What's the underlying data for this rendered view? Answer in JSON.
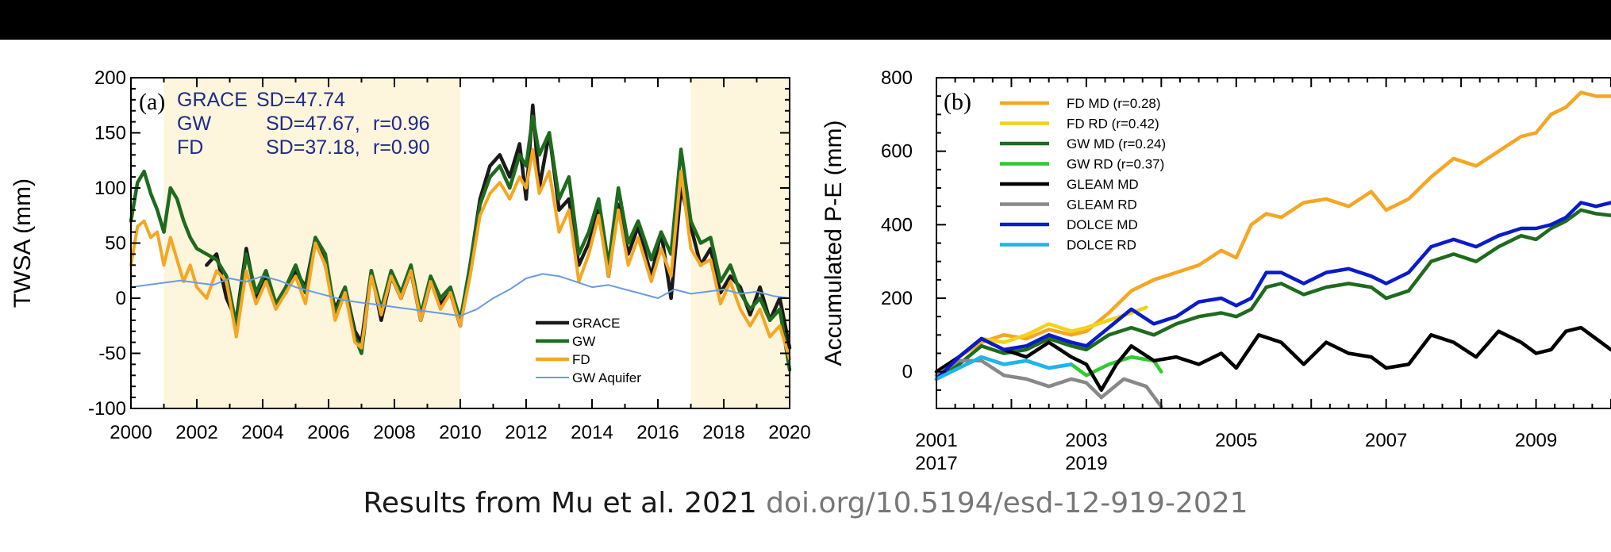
{
  "caption": {
    "text": "Results from Mu et al. 2021",
    "doi": "doi.org/10.5194/esd-12-919-2021"
  },
  "chart_data": [
    {
      "type": "line",
      "panel_label": "(a)",
      "ylabel": "TWSA (mm)",
      "xlim": [
        2000,
        2020
      ],
      "ylim": [
        -100,
        200
      ],
      "xticks": [
        2000,
        2002,
        2004,
        2006,
        2008,
        2010,
        2012,
        2014,
        2016,
        2018,
        2020
      ],
      "yticks": [
        -100,
        -50,
        0,
        50,
        100,
        150,
        200
      ],
      "background": "#fdf5dc",
      "shaded_periods": [
        [
          2001,
          2010
        ],
        [
          2017,
          2020
        ]
      ],
      "stats": [
        {
          "name": "GRACE",
          "sd": "SD=47.74",
          "r": ""
        },
        {
          "name": "GW",
          "sd": "SD=47.67,",
          "r": "r=0.96"
        },
        {
          "name": "FD",
          "sd": "SD=37.18,",
          "r": "r=0.90"
        }
      ],
      "stats_color": "#1f2a8c",
      "legend_position": "bottom-right",
      "series": [
        {
          "name": "GRACE",
          "color": "#1a1a1a",
          "x": [
            2002.3,
            2002.6,
            2002.9,
            2003.2,
            2003.5,
            2003.8,
            2004.1,
            2004.4,
            2004.7,
            2005.0,
            2005.3,
            2005.6,
            2005.9,
            2006.2,
            2006.5,
            2006.8,
            2007.0,
            2007.3,
            2007.6,
            2007.9,
            2008.2,
            2008.5,
            2008.8,
            2009.1,
            2009.4,
            2009.7,
            2010.0,
            2010.3,
            2010.6,
            2010.9,
            2011.2,
            2011.5,
            2011.8,
            2012.0,
            2012.2,
            2012.4,
            2012.7,
            2013.0,
            2013.3,
            2013.6,
            2013.9,
            2014.2,
            2014.5,
            2014.8,
            2015.1,
            2015.4,
            2015.8,
            2016.1,
            2016.4,
            2016.7,
            2017.0,
            2017.3,
            2017.6,
            2017.9,
            2018.2,
            2018.5,
            2018.8,
            2019.1,
            2019.4,
            2019.7,
            2020.0
          ],
          "y": [
            30,
            40,
            0,
            -20,
            45,
            0,
            20,
            -5,
            5,
            25,
            10,
            55,
            30,
            -10,
            10,
            -30,
            -40,
            25,
            -20,
            20,
            0,
            25,
            -20,
            15,
            -5,
            5,
            -25,
            30,
            90,
            120,
            130,
            110,
            140,
            90,
            175,
            100,
            150,
            80,
            90,
            30,
            50,
            80,
            20,
            85,
            40,
            65,
            20,
            60,
            0,
            100,
            65,
            30,
            45,
            5,
            20,
            10,
            -15,
            10,
            -20,
            0,
            -45
          ]
        },
        {
          "name": "GW",
          "color": "#1e6b1e",
          "x": [
            2000.0,
            2000.2,
            2000.4,
            2000.6,
            2000.8,
            2001.0,
            2001.2,
            2001.4,
            2001.6,
            2001.8,
            2002.0,
            2002.3,
            2002.6,
            2002.9,
            2003.2,
            2003.5,
            2003.8,
            2004.1,
            2004.4,
            2004.7,
            2005.0,
            2005.3,
            2005.6,
            2005.9,
            2006.2,
            2006.5,
            2006.8,
            2007.0,
            2007.3,
            2007.6,
            2007.9,
            2008.2,
            2008.5,
            2008.8,
            2009.1,
            2009.4,
            2009.7,
            2010.0,
            2010.3,
            2010.6,
            2010.9,
            2011.2,
            2011.5,
            2011.8,
            2012.0,
            2012.2,
            2012.4,
            2012.7,
            2013.0,
            2013.3,
            2013.6,
            2013.9,
            2014.2,
            2014.5,
            2014.8,
            2015.1,
            2015.4,
            2015.8,
            2016.1,
            2016.4,
            2016.7,
            2017.0,
            2017.3,
            2017.6,
            2017.9,
            2018.2,
            2018.5,
            2018.8,
            2019.1,
            2019.4,
            2019.7,
            2020.0
          ],
          "y": [
            70,
            105,
            115,
            95,
            80,
            60,
            100,
            90,
            70,
            55,
            45,
            40,
            35,
            20,
            -25,
            40,
            5,
            25,
            -5,
            10,
            30,
            5,
            55,
            40,
            -15,
            10,
            -35,
            -50,
            25,
            -10,
            25,
            5,
            30,
            -15,
            20,
            0,
            10,
            -20,
            30,
            85,
            110,
            120,
            100,
            130,
            120,
            165,
            130,
            150,
            90,
            110,
            40,
            60,
            90,
            30,
            100,
            50,
            70,
            35,
            60,
            40,
            135,
            70,
            50,
            55,
            15,
            30,
            5,
            -10,
            0,
            -20,
            -10,
            -65
          ]
        },
        {
          "name": "FD",
          "color": "#f5a623",
          "x": [
            2000.0,
            2000.2,
            2000.4,
            2000.6,
            2000.8,
            2001.0,
            2001.2,
            2001.4,
            2001.6,
            2001.8,
            2002.0,
            2002.3,
            2002.6,
            2002.9,
            2003.2,
            2003.5,
            2003.8,
            2004.1,
            2004.4,
            2004.7,
            2005.0,
            2005.3,
            2005.6,
            2005.9,
            2006.2,
            2006.5,
            2006.8,
            2007.0,
            2007.3,
            2007.6,
            2007.9,
            2008.2,
            2008.5,
            2008.8,
            2009.1,
            2009.4,
            2009.7,
            2010.0,
            2010.3,
            2010.6,
            2010.9,
            2011.2,
            2011.5,
            2011.8,
            2012.0,
            2012.2,
            2012.4,
            2012.7,
            2013.0,
            2013.3,
            2013.6,
            2013.9,
            2014.2,
            2014.5,
            2014.8,
            2015.1,
            2015.4,
            2015.8,
            2016.1,
            2016.4,
            2016.7,
            2017.0,
            2017.3,
            2017.6,
            2017.9,
            2018.2,
            2018.5,
            2018.8,
            2019.1,
            2019.4,
            2019.7,
            2020.0
          ],
          "y": [
            30,
            65,
            70,
            55,
            60,
            30,
            55,
            35,
            15,
            30,
            10,
            0,
            25,
            15,
            -35,
            25,
            -5,
            15,
            -10,
            5,
            20,
            -5,
            50,
            30,
            -20,
            5,
            -40,
            -45,
            20,
            -15,
            20,
            0,
            25,
            -20,
            15,
            -10,
            5,
            -25,
            20,
            75,
            95,
            105,
            90,
            110,
            100,
            135,
            95,
            115,
            60,
            80,
            15,
            40,
            75,
            20,
            80,
            30,
            55,
            15,
            45,
            20,
            115,
            45,
            30,
            35,
            -5,
            15,
            -10,
            -25,
            -10,
            -35,
            -25,
            -55
          ]
        },
        {
          "name": "GW Aquifer",
          "color": "#6b9be0",
          "x": [
            2000.0,
            2000.5,
            2001.0,
            2001.5,
            2002.0,
            2002.5,
            2003.0,
            2003.5,
            2004.0,
            2004.5,
            2005.0,
            2005.5,
            2006.0,
            2006.5,
            2007.0,
            2007.5,
            2008.0,
            2008.5,
            2009.0,
            2009.5,
            2010.0,
            2010.5,
            2011.0,
            2011.5,
            2012.0,
            2012.5,
            2013.0,
            2013.5,
            2014.0,
            2014.5,
            2015.0,
            2015.5,
            2016.0,
            2016.5,
            2017.0,
            2017.5,
            2018.0,
            2018.5,
            2019.0,
            2019.5,
            2020.0
          ],
          "y": [
            10,
            12,
            14,
            16,
            14,
            12,
            18,
            15,
            20,
            16,
            10,
            6,
            2,
            -2,
            -4,
            -6,
            -8,
            -10,
            -12,
            -14,
            -16,
            -10,
            0,
            8,
            18,
            22,
            20,
            15,
            10,
            12,
            8,
            4,
            0,
            8,
            4,
            6,
            8,
            4,
            6,
            2,
            0
          ]
        }
      ]
    },
    {
      "type": "line",
      "panel_label": "(b)",
      "ylabel": "Accumulated P-E (mm)",
      "xlim": [
        2001,
        2010
      ],
      "ylim": [
        -100,
        800
      ],
      "xticks": [
        2001,
        2002,
        2003,
        2004,
        2005,
        2006,
        2007,
        2008,
        2009,
        2010
      ],
      "xtick_labels": [
        {
          "x": 2001,
          "line1": "2001",
          "line2": "2017"
        },
        {
          "x": 2003,
          "line1": "2003",
          "line2": "2019"
        },
        {
          "x": 2005,
          "line1": "2005",
          "line2": ""
        },
        {
          "x": 2007,
          "line1": "2007",
          "line2": ""
        },
        {
          "x": 2009,
          "line1": "2009",
          "line2": ""
        }
      ],
      "yticks": [
        0,
        200,
        400,
        600,
        800
      ],
      "legend_position": "top-left",
      "series": [
        {
          "name": "FD MD",
          "legend": "FD MD  (r=0.28)",
          "color": "#f5a623",
          "x": [
            2001.0,
            2001.3,
            2001.6,
            2001.9,
            2002.2,
            2002.5,
            2002.8,
            2003.0,
            2003.3,
            2003.6,
            2003.9,
            2004.2,
            2004.5,
            2004.8,
            2005.0,
            2005.2,
            2005.4,
            2005.6,
            2005.9,
            2006.2,
            2006.5,
            2006.8,
            2007.0,
            2007.3,
            2007.6,
            2007.9,
            2008.2,
            2008.5,
            2008.8,
            2009.0,
            2009.2,
            2009.4,
            2009.6,
            2009.8,
            2010.0
          ],
          "y": [
            0,
            40,
            80,
            100,
            90,
            115,
            100,
            110,
            160,
            220,
            250,
            270,
            290,
            330,
            310,
            400,
            430,
            420,
            460,
            470,
            450,
            490,
            440,
            470,
            530,
            580,
            560,
            600,
            640,
            650,
            700,
            720,
            760,
            750,
            750
          ]
        },
        {
          "name": "FD RD",
          "legend": "FD RD  (r=0.42)",
          "color": "#f2d21b",
          "x": [
            2001.0,
            2001.3,
            2001.6,
            2001.9,
            2002.2,
            2002.5,
            2002.8,
            2003.0,
            2003.3,
            2003.6,
            2003.8
          ],
          "y": [
            0,
            40,
            90,
            80,
            100,
            130,
            110,
            120,
            140,
            160,
            175
          ]
        },
        {
          "name": "GW MD",
          "legend": "GW MD (r=0.24)",
          "color": "#1e6b1e",
          "x": [
            2001.0,
            2001.3,
            2001.6,
            2001.9,
            2002.2,
            2002.5,
            2002.8,
            2003.0,
            2003.3,
            2003.6,
            2003.9,
            2004.2,
            2004.5,
            2004.8,
            2005.0,
            2005.2,
            2005.4,
            2005.6,
            2005.9,
            2006.2,
            2006.5,
            2006.8,
            2007.0,
            2007.3,
            2007.6,
            2007.9,
            2008.2,
            2008.5,
            2008.8,
            2009.0,
            2009.2,
            2009.4,
            2009.6,
            2009.8,
            2010.0
          ],
          "y": [
            -20,
            20,
            70,
            50,
            60,
            90,
            70,
            60,
            100,
            120,
            100,
            130,
            150,
            160,
            150,
            170,
            230,
            240,
            210,
            230,
            240,
            230,
            200,
            220,
            300,
            320,
            300,
            340,
            370,
            360,
            390,
            410,
            440,
            430,
            425
          ]
        },
        {
          "name": "GW RD",
          "legend": "GW RD (r=0.37)",
          "color": "#2ecc2e",
          "x": [
            2001.0,
            2001.3,
            2001.6,
            2001.9,
            2002.2,
            2002.5,
            2002.8,
            2003.0,
            2003.3,
            2003.6,
            2003.9,
            2004.0
          ],
          "y": [
            -20,
            10,
            40,
            20,
            30,
            10,
            20,
            -10,
            20,
            40,
            30,
            0
          ]
        },
        {
          "name": "GLEAM MD",
          "legend": "GLEAM MD",
          "color": "#000000",
          "x": [
            2001.0,
            2001.3,
            2001.6,
            2001.9,
            2002.2,
            2002.5,
            2002.8,
            2003.0,
            2003.2,
            2003.4,
            2003.6,
            2003.9,
            2004.2,
            2004.5,
            2004.8,
            2005.0,
            2005.3,
            2005.6,
            2005.9,
            2006.2,
            2006.5,
            2006.8,
            2007.0,
            2007.3,
            2007.6,
            2007.9,
            2008.2,
            2008.5,
            2008.8,
            2009.0,
            2009.2,
            2009.4,
            2009.6,
            2009.8,
            2010.0
          ],
          "y": [
            0,
            40,
            90,
            60,
            40,
            80,
            40,
            20,
            -50,
            20,
            70,
            30,
            40,
            20,
            50,
            10,
            100,
            80,
            20,
            80,
            50,
            40,
            10,
            20,
            100,
            80,
            40,
            110,
            80,
            50,
            60,
            110,
            120,
            90,
            60
          ]
        },
        {
          "name": "GLEAM RD",
          "legend": "GLEAM RD",
          "color": "#888888",
          "x": [
            2001.0,
            2001.3,
            2001.6,
            2001.9,
            2002.2,
            2002.5,
            2002.8,
            2003.0,
            2003.2,
            2003.5,
            2003.8,
            2004.0
          ],
          "y": [
            -10,
            30,
            30,
            -10,
            -20,
            -40,
            -20,
            -30,
            -70,
            -20,
            -40,
            -95
          ]
        },
        {
          "name": "DOLCE MD",
          "legend": "DOLCE MD",
          "color": "#0a1bc9",
          "x": [
            2001.0,
            2001.3,
            2001.6,
            2001.9,
            2002.2,
            2002.5,
            2002.8,
            2003.0,
            2003.3,
            2003.6,
            2003.9,
            2004.2,
            2004.5,
            2004.8,
            2005.0,
            2005.2,
            2005.4,
            2005.6,
            2005.9,
            2006.2,
            2006.5,
            2006.8,
            2007.0,
            2007.3,
            2007.6,
            2007.9,
            2008.2,
            2008.5,
            2008.8,
            2009.0,
            2009.2,
            2009.4,
            2009.6,
            2009.8,
            2010.0
          ],
          "y": [
            -20,
            40,
            90,
            60,
            70,
            100,
            80,
            70,
            120,
            170,
            130,
            150,
            190,
            200,
            180,
            200,
            270,
            270,
            240,
            270,
            280,
            260,
            240,
            270,
            340,
            360,
            340,
            370,
            390,
            390,
            400,
            420,
            460,
            450,
            460
          ]
        },
        {
          "name": "DOLCE RD",
          "legend": "DOLCE RD",
          "color": "#1eb4f0",
          "x": [
            2001.0,
            2001.3,
            2001.6,
            2001.9,
            2002.2,
            2002.5,
            2002.8
          ],
          "y": [
            -20,
            10,
            40,
            20,
            30,
            10,
            20
          ]
        }
      ]
    }
  ]
}
